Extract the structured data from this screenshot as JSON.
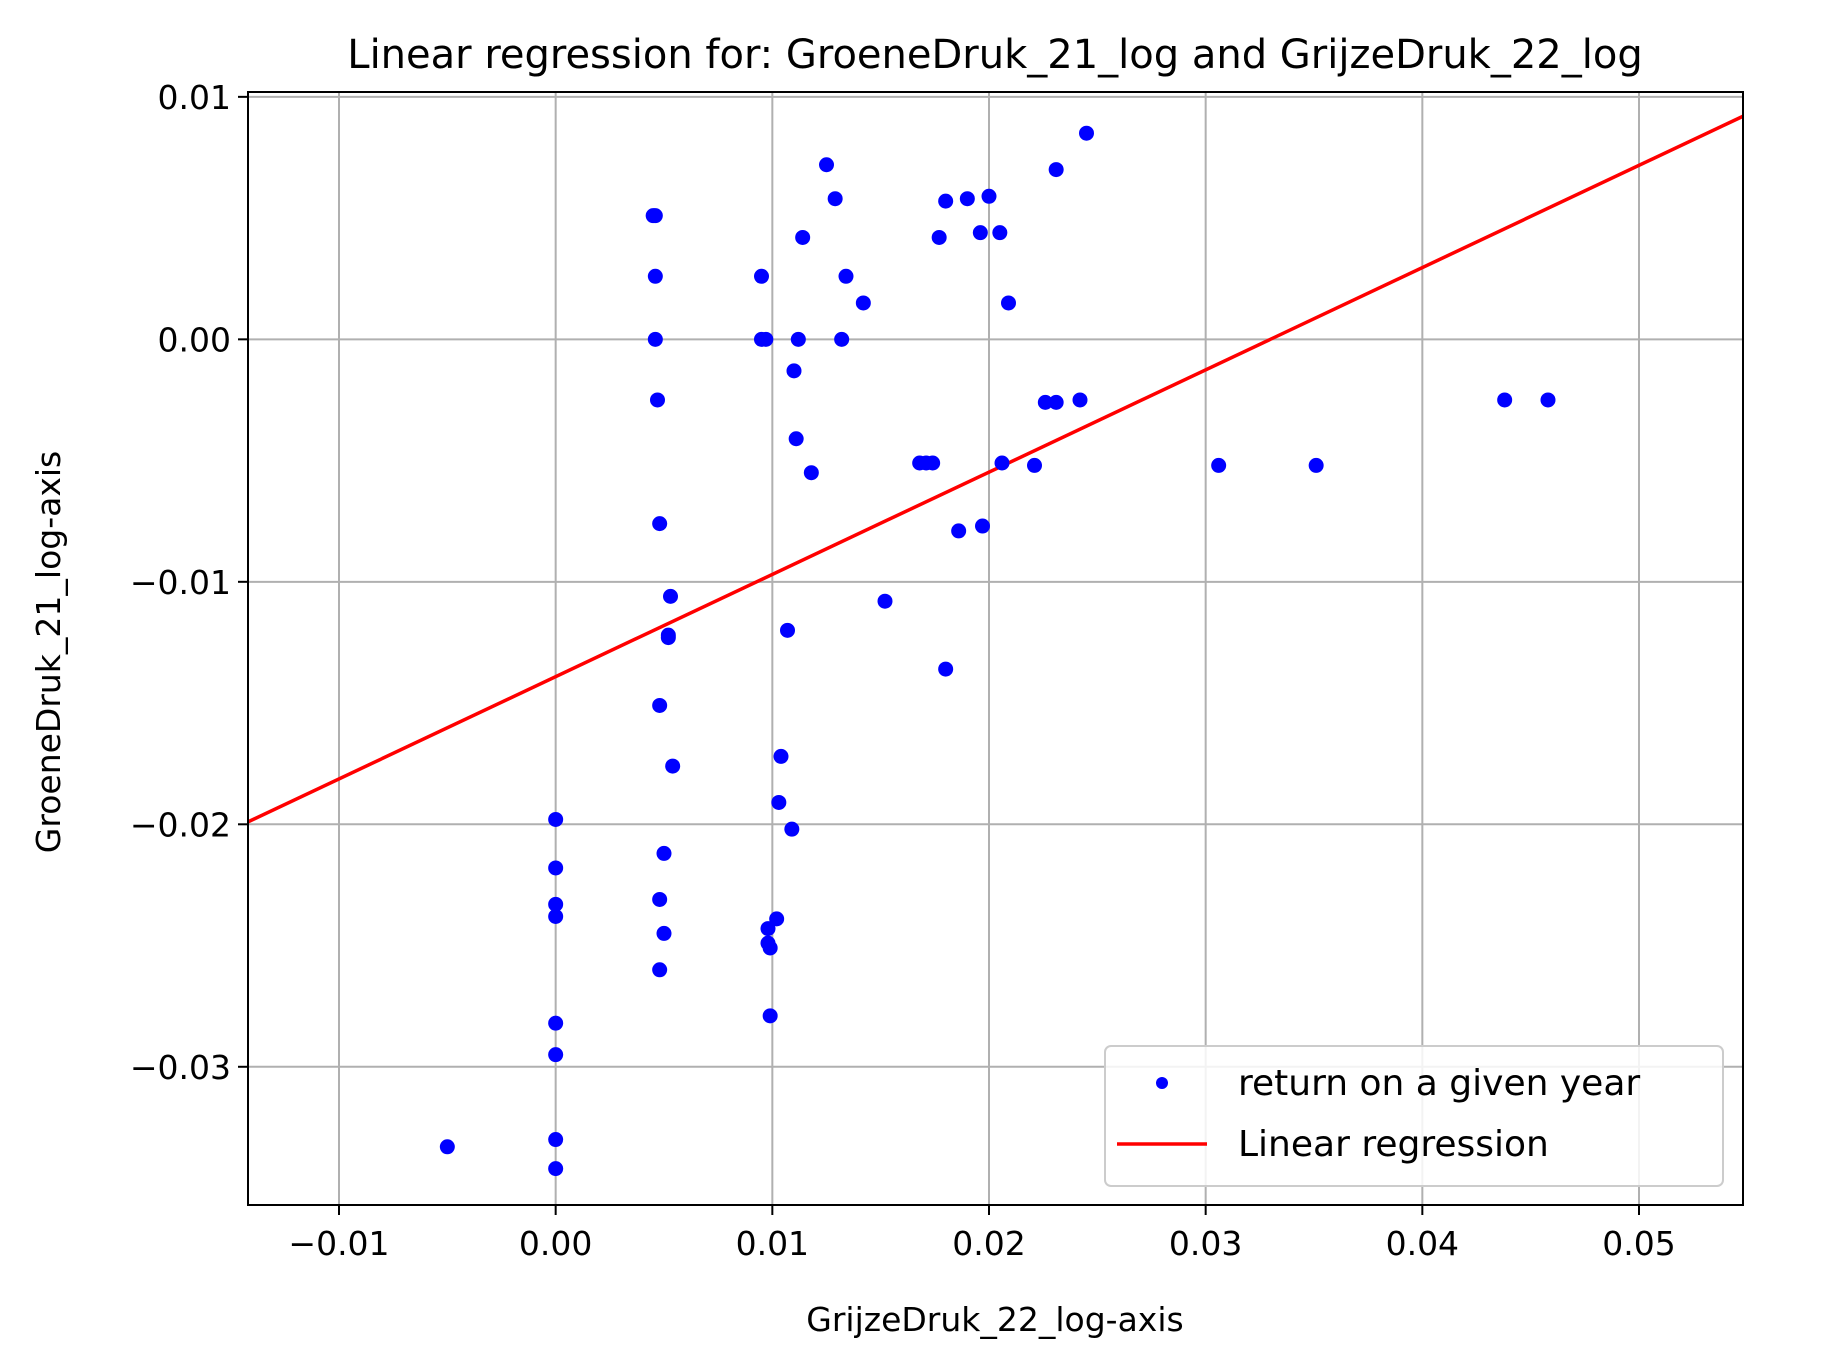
{
  "chart_data": {
    "type": "scatter",
    "title": "Linear regression for: GroeneDruk_21_log and GrijzeDruk_22_log",
    "xlabel": "GrijzeDruk_22_log-axis",
    "ylabel": "GroeneDruk_21_log-axis",
    "xlim": [
      -0.0142,
      0.0548
    ],
    "ylim": [
      -0.0357,
      0.0102
    ],
    "xticks": [
      -0.01,
      0.0,
      0.01,
      0.02,
      0.03,
      0.04,
      0.05
    ],
    "xtick_labels": [
      "−0.01",
      "0.00",
      "0.01",
      "0.02",
      "0.03",
      "0.04",
      "0.05"
    ],
    "yticks": [
      0.01,
      0.0,
      -0.01,
      -0.02,
      -0.03
    ],
    "ytick_labels": [
      "0.01",
      "0.00",
      "−0.01",
      "−0.02",
      "−0.03"
    ],
    "grid": true,
    "legend_position": "lower-right",
    "colors": {
      "scatter": "#0000ff",
      "line": "#ff0000",
      "grid": "#b0b0b0"
    },
    "series": [
      {
        "name": "return on a given year",
        "kind": "scatter",
        "points": [
          [
            -0.005,
            -0.0333
          ],
          [
            0.0,
            -0.0198
          ],
          [
            0.0,
            -0.0218
          ],
          [
            0.0,
            -0.0233
          ],
          [
            0.0,
            -0.0238
          ],
          [
            0.0,
            -0.0282
          ],
          [
            0.0,
            -0.0295
          ],
          [
            0.0,
            -0.033
          ],
          [
            0.0,
            -0.0342
          ],
          [
            0.0045,
            0.0051
          ],
          [
            0.0046,
            0.0051
          ],
          [
            0.0046,
            0.0026
          ],
          [
            0.0046,
            0.0
          ],
          [
            0.0047,
            -0.0025
          ],
          [
            0.0048,
            -0.0076
          ],
          [
            0.0048,
            -0.0151
          ],
          [
            0.0048,
            -0.0231
          ],
          [
            0.0048,
            -0.026
          ],
          [
            0.005,
            -0.0212
          ],
          [
            0.005,
            -0.0245
          ],
          [
            0.0052,
            -0.0122
          ],
          [
            0.0053,
            -0.0106
          ],
          [
            0.0052,
            -0.0123
          ],
          [
            0.0054,
            -0.0176
          ],
          [
            0.0095,
            0.0026
          ],
          [
            0.0095,
            0.0
          ],
          [
            0.0097,
            0.0
          ],
          [
            0.0098,
            -0.0243
          ],
          [
            0.0098,
            -0.0249
          ],
          [
            0.0099,
            -0.0251
          ],
          [
            0.0099,
            -0.0279
          ],
          [
            0.0102,
            -0.0239
          ],
          [
            0.0103,
            -0.0191
          ],
          [
            0.0104,
            -0.0172
          ],
          [
            0.0107,
            -0.012
          ],
          [
            0.0109,
            -0.0202
          ],
          [
            0.011,
            -0.0013
          ],
          [
            0.0111,
            -0.0041
          ],
          [
            0.0112,
            0.0
          ],
          [
            0.0114,
            0.0042
          ],
          [
            0.0118,
            -0.0055
          ],
          [
            0.0125,
            0.0072
          ],
          [
            0.0129,
            0.0058
          ],
          [
            0.0132,
            0.0
          ],
          [
            0.0134,
            0.0026
          ],
          [
            0.0142,
            0.0015
          ],
          [
            0.0152,
            -0.0108
          ],
          [
            0.0168,
            -0.0051
          ],
          [
            0.0171,
            -0.0051
          ],
          [
            0.0174,
            -0.0051
          ],
          [
            0.0177,
            0.0042
          ],
          [
            0.018,
            0.0057
          ],
          [
            0.018,
            -0.0136
          ],
          [
            0.0186,
            -0.0079
          ],
          [
            0.019,
            0.0058
          ],
          [
            0.0196,
            0.0044
          ],
          [
            0.0197,
            -0.0077
          ],
          [
            0.02,
            0.0059
          ],
          [
            0.0205,
            0.0044
          ],
          [
            0.0206,
            -0.0051
          ],
          [
            0.0209,
            0.0015
          ],
          [
            0.0221,
            -0.0052
          ],
          [
            0.0226,
            -0.0026
          ],
          [
            0.0231,
            -0.0026
          ],
          [
            0.0231,
            0.007
          ],
          [
            0.0242,
            -0.0025
          ],
          [
            0.0245,
            0.0085
          ],
          [
            0.0306,
            -0.0052
          ],
          [
            0.0351,
            -0.0052
          ],
          [
            0.0438,
            -0.0025
          ],
          [
            0.0458,
            -0.0025
          ]
        ]
      },
      {
        "name": "Linear regression",
        "kind": "line",
        "points": [
          [
            -0.0142,
            -0.0199
          ],
          [
            0.0548,
            0.0092
          ]
        ]
      }
    ]
  }
}
